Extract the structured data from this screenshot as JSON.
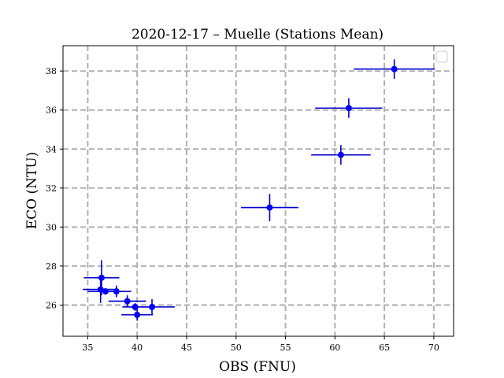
{
  "chart_data": {
    "type": "scatter",
    "title": "2020-12-17 – Muelle (Stations Mean)",
    "xlabel": "OBS (FNU)",
    "ylabel": "ECO (NTU)",
    "xlim": [
      32.5,
      72.0
    ],
    "ylim": [
      24.4,
      39.3
    ],
    "xticks": [
      35,
      40,
      45,
      50,
      55,
      60,
      65,
      70
    ],
    "yticks": [
      26,
      28,
      30,
      32,
      34,
      36,
      38
    ],
    "grid": true,
    "legend": "top-right (empty)",
    "colors": {
      "points": "#0000ff",
      "errorbars": "#0000cc",
      "grid": "#b0b0b0"
    },
    "series": [
      {
        "points": [
          {
            "x": 36.4,
            "y": 27.4,
            "xerr": 1.8,
            "yerr": 0.9
          },
          {
            "x": 36.3,
            "y": 26.8,
            "xerr": 1.8,
            "yerr": 0.7
          },
          {
            "x": 36.8,
            "y": 26.7,
            "xerr": 1.8,
            "yerr": 0.1
          },
          {
            "x": 37.9,
            "y": 26.7,
            "xerr": 1.5,
            "yerr": 0.3
          },
          {
            "x": 39.0,
            "y": 26.2,
            "xerr": 1.9,
            "yerr": 0.3
          },
          {
            "x": 39.8,
            "y": 25.9,
            "xerr": 1.3,
            "yerr": 0.2
          },
          {
            "x": 40.0,
            "y": 25.5,
            "xerr": 1.6,
            "yerr": 0.3
          },
          {
            "x": 41.5,
            "y": 25.9,
            "xerr": 2.3,
            "yerr": 0.4
          },
          {
            "x": 53.4,
            "y": 31.0,
            "xerr": 2.9,
            "yerr": 0.7
          },
          {
            "x": 60.6,
            "y": 33.7,
            "xerr": 3.0,
            "yerr": 0.5
          },
          {
            "x": 61.4,
            "y": 36.1,
            "xerr": 3.4,
            "yerr": 0.5
          },
          {
            "x": 66.0,
            "y": 38.1,
            "xerr": 4.1,
            "yerr": 0.5
          }
        ]
      }
    ]
  }
}
